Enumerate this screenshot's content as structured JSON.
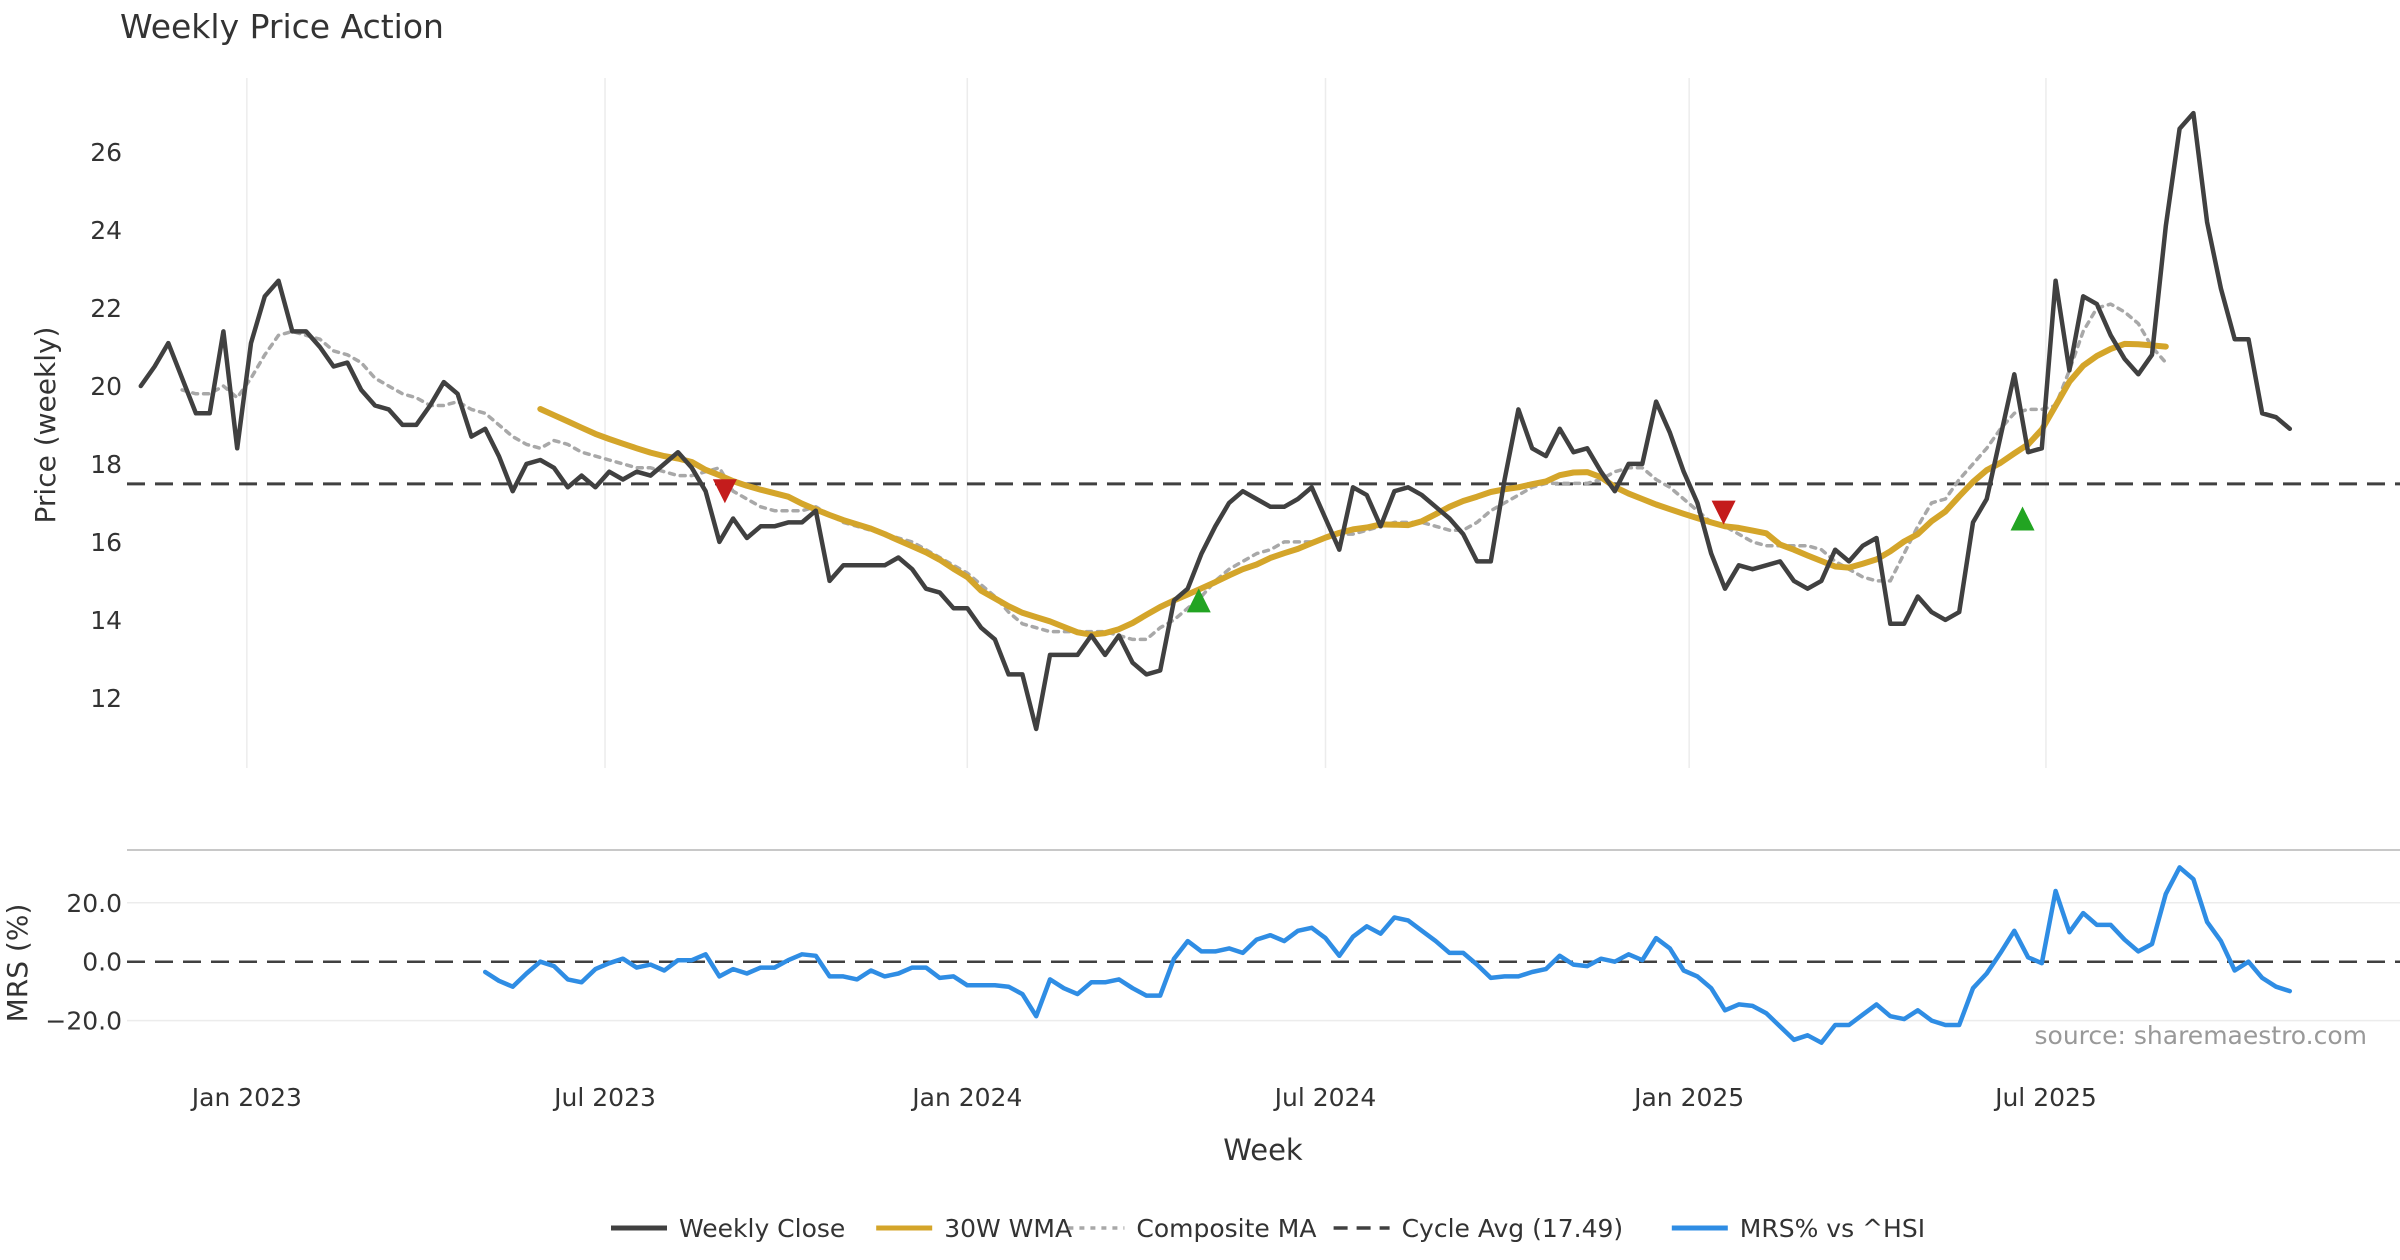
{
  "chart_data": {
    "type": "line",
    "title": "Weekly Price Action",
    "xlabel": "Week",
    "source": "source: sharemaestro.com",
    "x_ticks": [
      "Jan 2023",
      "Jul 2023",
      "Jan 2024",
      "Jul 2024",
      "Jan 2025",
      "Jul 2025"
    ],
    "x_tick_weeks": [
      7.7,
      33.7,
      60,
      86,
      112.4,
      138.3
    ],
    "week_range": [
      -1,
      164
    ],
    "price_panel": {
      "ylabel": "Price (weekly)",
      "ylim": [
        10.2,
        27.9
      ],
      "y_ticks": [
        12,
        14,
        16,
        18,
        20,
        22,
        24,
        26
      ],
      "y_tick_labels": [
        "12",
        "14",
        "16",
        "18",
        "20",
        "22",
        "24",
        "26"
      ],
      "cycle_avg": 17.49,
      "series": [
        {
          "name": "Weekly Close",
          "color": "#404040",
          "start_week": 0,
          "values": [
            20.0,
            20.5,
            21.1,
            20.2,
            19.3,
            19.3,
            21.4,
            18.4,
            21.1,
            22.3,
            22.7,
            21.4,
            21.4,
            21.0,
            20.5,
            20.6,
            19.9,
            19.5,
            19.4,
            19.0,
            19.0,
            19.5,
            20.1,
            19.8,
            18.7,
            18.9,
            18.2,
            17.3,
            18.0,
            18.1,
            17.9,
            17.4,
            17.7,
            17.4,
            17.8,
            17.6,
            17.8,
            17.7,
            18.0,
            18.3,
            17.9,
            17.3,
            16.0,
            16.6,
            16.1,
            16.4,
            16.4,
            16.5,
            16.5,
            16.8,
            15.0,
            15.4,
            15.4,
            15.4,
            15.4,
            15.6,
            15.3,
            14.8,
            14.7,
            14.3,
            14.3,
            13.8,
            13.5,
            12.6,
            12.6,
            11.2,
            13.1,
            13.1,
            13.1,
            13.6,
            13.1,
            13.6,
            12.9,
            12.6,
            12.7,
            14.5,
            14.8,
            15.7,
            16.4,
            17.0,
            17.3,
            17.1,
            16.9,
            16.9,
            17.1,
            17.4,
            16.6,
            15.8,
            17.4,
            17.2,
            16.4,
            17.3,
            17.4,
            17.2,
            16.9,
            16.6,
            16.2,
            15.5,
            15.5,
            17.6,
            19.4,
            18.4,
            18.2,
            18.9,
            18.3,
            18.4,
            17.8,
            17.3,
            18.0,
            18.0,
            19.6,
            18.8,
            17.8,
            17.0,
            15.7,
            14.8,
            15.4,
            15.3,
            15.4,
            15.5,
            15.0,
            14.8,
            15.0,
            15.8,
            15.5,
            15.9,
            16.1,
            13.9,
            13.9,
            14.6,
            14.2,
            14.0,
            14.2,
            16.5,
            17.1,
            18.7,
            20.3,
            18.3,
            18.4,
            22.7,
            20.4,
            22.3,
            22.1,
            21.3,
            20.7,
            20.3,
            20.8,
            24.1,
            26.6,
            27.0,
            24.2,
            22.5,
            21.2,
            21.2,
            19.3,
            19.2,
            18.9
          ]
        },
        {
          "name": "30W WMA",
          "color": "#d4a52a",
          "start_week": 29,
          "values": [
            19.41,
            19.25,
            19.09,
            18.93,
            18.77,
            18.64,
            18.52,
            18.4,
            18.29,
            18.2,
            18.14,
            18.05,
            17.85,
            17.71,
            17.56,
            17.44,
            17.34,
            17.25,
            17.16,
            16.98,
            16.83,
            16.69,
            16.56,
            16.45,
            16.34,
            16.2,
            16.04,
            15.89,
            15.73,
            15.54,
            15.31,
            15.1,
            14.75,
            14.55,
            14.35,
            14.18,
            14.07,
            13.96,
            13.82,
            13.68,
            13.62,
            13.66,
            13.76,
            13.92,
            14.13,
            14.33,
            14.5,
            14.65,
            14.81,
            14.97,
            15.14,
            15.3,
            15.42,
            15.59,
            15.71,
            15.82,
            15.97,
            16.11,
            16.23,
            16.32,
            16.37,
            16.45,
            16.44,
            16.43,
            16.53,
            16.71,
            16.9,
            17.05,
            17.16,
            17.28,
            17.35,
            17.4,
            17.48,
            17.55,
            17.71,
            17.78,
            17.79,
            17.66,
            17.41,
            17.24,
            17.1,
            16.96,
            16.84,
            16.72,
            16.61,
            16.5,
            16.4,
            16.36,
            16.29,
            16.22,
            15.93,
            15.8,
            15.65,
            15.51,
            15.37,
            15.34,
            15.44,
            15.55,
            15.76,
            16.01,
            16.2,
            16.53,
            16.78,
            17.17,
            17.54,
            17.84,
            18.03,
            18.27,
            18.5,
            18.88,
            19.49,
            20.11,
            20.52,
            20.77,
            20.95,
            21.08,
            21.07,
            21.04,
            21.01
          ]
        },
        {
          "name": "Composite MA",
          "color": "#a8a8a8",
          "start_week": 3,
          "values": [
            19.9,
            19.8,
            19.8,
            20.0,
            19.7,
            20.2,
            20.8,
            21.3,
            21.4,
            21.3,
            21.2,
            20.9,
            20.8,
            20.6,
            20.2,
            20.0,
            19.8,
            19.7,
            19.5,
            19.5,
            19.6,
            19.4,
            19.3,
            19.0,
            18.7,
            18.5,
            18.4,
            18.6,
            18.5,
            18.3,
            18.2,
            18.1,
            18.0,
            17.9,
            17.9,
            17.8,
            17.7,
            17.7,
            17.8,
            17.9,
            17.3,
            17.1,
            16.9,
            16.8,
            16.8,
            16.8,
            16.9,
            16.7,
            16.5,
            16.4,
            16.3,
            16.2,
            16.1,
            16.0,
            15.8,
            15.6,
            15.4,
            15.2,
            14.9,
            14.6,
            14.2,
            13.9,
            13.8,
            13.7,
            13.7,
            13.7,
            13.7,
            13.7,
            13.6,
            13.5,
            13.5,
            13.8,
            14.0,
            14.3,
            14.6,
            15.0,
            15.3,
            15.5,
            15.7,
            15.8,
            16.0,
            16.0,
            16.0,
            16.1,
            16.2,
            16.2,
            16.3,
            16.4,
            16.5,
            16.5,
            16.5,
            16.4,
            16.3,
            16.3,
            16.5,
            16.8,
            17.0,
            17.2,
            17.4,
            17.5,
            17.5,
            17.5,
            17.5,
            17.6,
            17.8,
            17.9,
            17.9,
            17.6,
            17.4,
            17.1,
            16.8,
            16.5,
            16.4,
            16.2,
            16.0,
            15.9,
            15.9,
            15.9,
            15.9,
            15.8,
            15.5,
            15.3,
            15.1,
            15.0,
            15.0,
            15.7,
            16.4,
            17.0,
            17.1,
            17.6,
            18.0,
            18.4,
            18.9,
            19.3,
            19.4,
            19.4,
            19.5,
            20.4,
            21.4,
            22.0,
            22.1,
            21.9,
            21.6,
            21.0,
            20.6
          ]
        }
      ],
      "markers": [
        {
          "type": "sell",
          "week": 42.4,
          "value": 17.3,
          "color": "#c41c1c"
        },
        {
          "type": "buy",
          "week": 76.8,
          "value": 14.5,
          "color": "#22a422"
        },
        {
          "type": "sell",
          "week": 114.9,
          "value": 16.75,
          "color": "#c41c1c"
        },
        {
          "type": "buy",
          "week": 136.6,
          "value": 16.6,
          "color": "#22a422"
        }
      ]
    },
    "mrs_panel": {
      "ylabel": "MRS (%)",
      "ylim": [
        -29.3,
        35.2
      ],
      "y_ticks": [
        20,
        0,
        -20
      ],
      "y_tick_labels": [
        "20.0",
        "0.0",
        "−20.0"
      ],
      "series": [
        {
          "name": "MRS% vs ^HSI",
          "color": "#2f8de4",
          "start_week": 25,
          "values": [
            -3.5,
            -6.5,
            -8.5,
            -4.0,
            0.0,
            -1.5,
            -6.0,
            -7.0,
            -2.5,
            -0.5,
            1.0,
            -2.0,
            -1.0,
            -3.0,
            0.5,
            0.5,
            2.5,
            -5.0,
            -2.5,
            -4.0,
            -2.0,
            -2.0,
            0.5,
            2.5,
            2.0,
            -5.0,
            -5.0,
            -6.0,
            -3.0,
            -5.0,
            -4.0,
            -2.0,
            -2.0,
            -5.5,
            -5.0,
            -8.0,
            -8.0,
            -8.0,
            -8.5,
            -11.0,
            -18.5,
            -6.0,
            -9.0,
            -11.0,
            -7.0,
            -7.0,
            -6.0,
            -9.0,
            -11.5,
            -11.5,
            1.0,
            7.0,
            3.5,
            3.5,
            4.5,
            3.0,
            7.5,
            9.0,
            7.0,
            10.5,
            11.5,
            8.0,
            2.0,
            8.5,
            12.0,
            9.5,
            15.0,
            14.0,
            10.5,
            7.0,
            3.0,
            3.0,
            -1.0,
            -5.5,
            -5.0,
            -5.0,
            -3.5,
            -2.5,
            2.0,
            -1.0,
            -1.5,
            1.0,
            0.0,
            2.5,
            0.5,
            8.0,
            4.5,
            -3.0,
            -5.0,
            -9.0,
            -16.5,
            -14.5,
            -15.0,
            -17.5,
            -22.0,
            -26.5,
            -25.0,
            -27.5,
            -21.5,
            -21.5,
            -18.0,
            -14.5,
            -18.5,
            -19.5,
            -16.5,
            -20.0,
            -21.5,
            -21.5,
            -9.0,
            -4.0,
            3.0,
            10.5,
            1.5,
            -0.5,
            24.0,
            10.0,
            16.5,
            12.5,
            12.5,
            7.5,
            3.5,
            6.0,
            23.0,
            32.0,
            28.0,
            13.5,
            7.0,
            -3.0,
            0.0,
            -5.5,
            -8.5,
            -10.0
          ]
        }
      ]
    },
    "legend": {
      "placement": "bottom-center",
      "entries": [
        {
          "label": "Weekly Close",
          "color": "#404040",
          "style": "solid"
        },
        {
          "label": "30W WMA",
          "color": "#d4a52a",
          "style": "solid"
        },
        {
          "label": "Composite MA",
          "color": "#a8a8a8",
          "style": "dotted"
        },
        {
          "label": "Cycle Avg (17.49)",
          "color": "#404040",
          "style": "dashed"
        },
        {
          "label": "MRS% vs ^HSI",
          "color": "#2f8de4",
          "style": "solid"
        }
      ]
    }
  }
}
